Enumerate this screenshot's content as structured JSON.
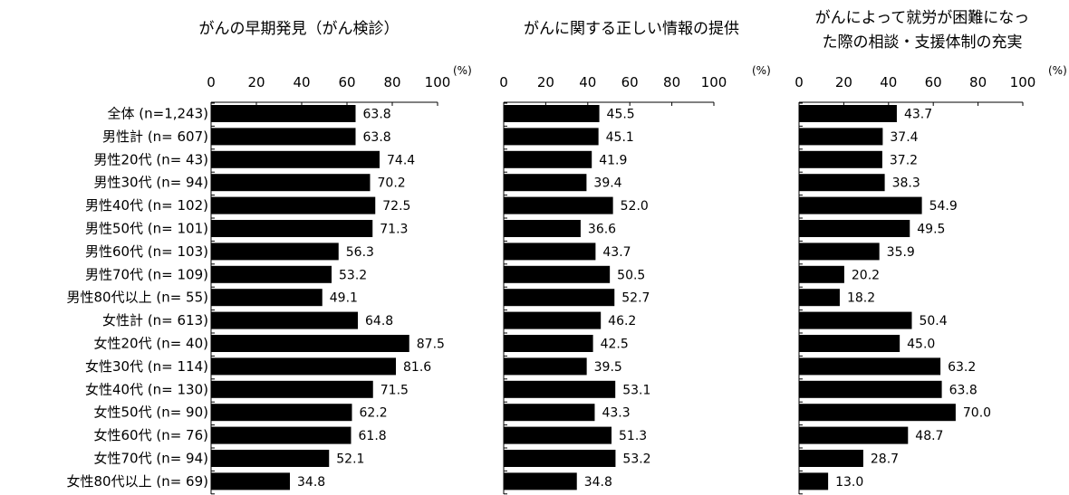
{
  "chart_data": [
    {
      "type": "bar",
      "orientation": "horizontal",
      "title": [
        "がんの早期発見（がん検診）"
      ],
      "unit": "(%)",
      "xlim": [
        0,
        100
      ],
      "ticks": [
        0,
        20,
        40,
        60,
        80,
        100
      ],
      "values": [
        63.8,
        63.8,
        74.4,
        70.2,
        72.5,
        71.3,
        56.3,
        53.2,
        49.1,
        64.8,
        87.5,
        81.6,
        71.5,
        62.2,
        61.8,
        52.1,
        34.8
      ],
      "value_labels": [
        "63.8",
        "63.8",
        "74.4",
        "70.2",
        "72.5",
        "71.3",
        "56.3",
        "53.2",
        "49.1",
        "64.8",
        "87.5",
        "81.6",
        "71.5",
        "62.2",
        "61.8",
        "52.1",
        "34.8"
      ]
    },
    {
      "type": "bar",
      "orientation": "horizontal",
      "title": [
        "がんに関する正しい情報の提供"
      ],
      "unit": "(%)",
      "xlim": [
        0,
        100
      ],
      "ticks": [
        0,
        20,
        40,
        60,
        80,
        100
      ],
      "values": [
        45.5,
        45.1,
        41.9,
        39.4,
        52.0,
        36.6,
        43.7,
        50.5,
        52.7,
        46.2,
        42.5,
        39.5,
        53.1,
        43.3,
        51.3,
        53.2,
        34.8
      ],
      "value_labels": [
        "45.5",
        "45.1",
        "41.9",
        "39.4",
        "52.0",
        "36.6",
        "43.7",
        "50.5",
        "52.7",
        "46.2",
        "42.5",
        "39.5",
        "53.1",
        "43.3",
        "51.3",
        "53.2",
        "34.8"
      ]
    },
    {
      "type": "bar",
      "orientation": "horizontal",
      "title": [
        "がんによって就労が困難になっ",
        "た際の相談・支援体制の充実"
      ],
      "unit": "(%)",
      "xlim": [
        0,
        100
      ],
      "ticks": [
        0,
        20,
        40,
        60,
        80,
        100
      ],
      "values": [
        43.7,
        37.4,
        37.2,
        38.3,
        54.9,
        49.5,
        35.9,
        20.2,
        18.2,
        50.4,
        45.0,
        63.2,
        63.8,
        70.0,
        48.7,
        28.7,
        13.0
      ],
      "value_labels": [
        "43.7",
        "37.4",
        "37.2",
        "38.3",
        "54.9",
        "49.5",
        "35.9",
        "20.2",
        "18.2",
        "50.4",
        "45.0",
        "63.2",
        "63.8",
        "70.0",
        "48.7",
        "28.7",
        "13.0"
      ]
    }
  ],
  "categories": [
    "全体 (n=1,243)",
    "男性計 (n=  607)",
    "男性20代 (n=   43)",
    "男性30代 (n=   94)",
    "男性40代 (n=  102)",
    "男性50代 (n=  101)",
    "男性60代 (n=  103)",
    "男性70代 (n=  109)",
    "男性80代以上 (n=   55)",
    "女性計 (n=  613)",
    "女性20代 (n=   40)",
    "女性30代 (n=  114)",
    "女性40代 (n=  130)",
    "女性50代 (n=   90)",
    "女性60代 (n=   76)",
    "女性70代 (n=   94)",
    "女性80代以上 (n=   69)"
  ],
  "colors": {
    "bar": "#000000",
    "axis": "#000000",
    "background": "#ffffff"
  }
}
